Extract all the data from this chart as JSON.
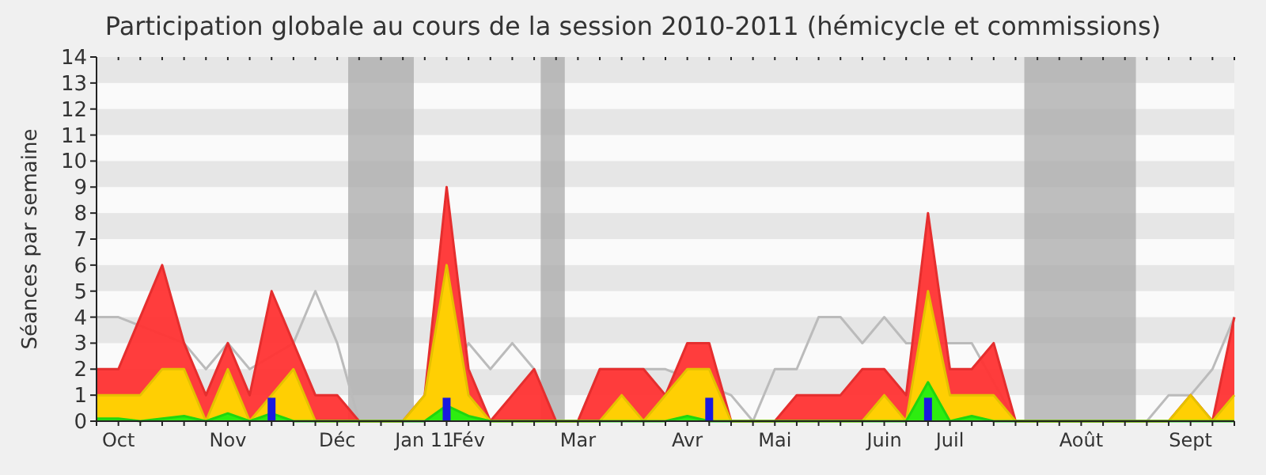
{
  "chart_data": {
    "type": "area",
    "title": "Participation globale au cours de la session 2010-2011 (hémicycle et commissions)",
    "ylabel": "Séances par semaine",
    "categories": [
      null,
      "Oct",
      null,
      null,
      null,
      null,
      "Nov",
      null,
      null,
      null,
      null,
      "Déc",
      null,
      null,
      null,
      "Jan 11",
      null,
      "Fév",
      null,
      null,
      null,
      null,
      "Mar",
      null,
      null,
      null,
      null,
      "Avr",
      null,
      null,
      null,
      "Mai",
      null,
      null,
      null,
      null,
      "Juin",
      null,
      null,
      "Juil",
      null,
      null,
      null,
      null,
      null,
      "Août",
      null,
      null,
      null,
      null,
      "Sept",
      null,
      null
    ],
    "ylim": [
      0,
      14
    ],
    "yticks": [
      0,
      1,
      2,
      3,
      4,
      5,
      6,
      7,
      8,
      9,
      10,
      11,
      12,
      13,
      14
    ],
    "series": [
      {
        "type": "line",
        "color": "#bbbbbb",
        "values": [
          4,
          4,
          null,
          null,
          3,
          2,
          3,
          2,
          null,
          3,
          5,
          3,
          0,
          0,
          0,
          0,
          null,
          3,
          2,
          3,
          2,
          0,
          0,
          2,
          null,
          null,
          2,
          null,
          null,
          1,
          0,
          2,
          2,
          4,
          4,
          3,
          4,
          3,
          null,
          3,
          3,
          null,
          0,
          0,
          0,
          0,
          0,
          0,
          0,
          1,
          1,
          2,
          4
        ]
      },
      {
        "color": "#ff3333",
        "values": [
          2,
          2,
          4,
          6,
          3,
          1,
          3,
          1,
          5,
          3,
          1,
          1,
          0,
          0,
          0,
          1,
          9,
          2,
          0,
          1,
          2,
          0,
          0,
          2,
          2,
          2,
          1,
          3,
          3,
          0,
          0,
          0,
          1,
          1,
          1,
          2,
          2,
          1,
          8,
          2,
          2,
          3,
          0,
          0,
          0,
          0,
          0,
          0,
          0,
          0,
          1,
          0,
          4
        ]
      },
      {
        "color": "#ffd700",
        "values": [
          1,
          1,
          1,
          2,
          2,
          0,
          2,
          0,
          1,
          2,
          0,
          0,
          0,
          0,
          0,
          1,
          6,
          1,
          0,
          0,
          0,
          0,
          0,
          0,
          1,
          0,
          1,
          2,
          2,
          0,
          0,
          0,
          0,
          0,
          0,
          0,
          1,
          0,
          5,
          1,
          1,
          1,
          0,
          0,
          0,
          0,
          0,
          0,
          0,
          0,
          1,
          0,
          1
        ]
      },
      {
        "color": "#22ee11",
        "values": [
          0.1,
          0.1,
          0,
          0.1,
          0.2,
          0,
          0.3,
          0,
          0.3,
          0,
          0,
          0,
          0,
          0,
          0,
          0,
          0.6,
          0.2,
          0,
          0,
          0,
          0,
          0,
          0,
          0,
          0,
          0,
          0.2,
          0,
          0,
          0,
          0,
          0,
          0,
          0,
          0,
          0,
          0,
          1.5,
          0,
          0.2,
          0,
          0,
          0,
          0,
          0,
          0,
          0,
          0,
          0,
          0,
          0,
          0
        ]
      },
      {
        "type": "bar",
        "color": "#1a1ae0",
        "values": [
          null,
          null,
          null,
          null,
          null,
          null,
          null,
          null,
          0.9,
          null,
          null,
          null,
          null,
          null,
          null,
          null,
          0.9,
          null,
          null,
          null,
          null,
          null,
          null,
          null,
          null,
          null,
          null,
          null,
          0.9,
          null,
          null,
          null,
          null,
          null,
          null,
          null,
          null,
          null,
          0.9,
          null,
          null,
          null,
          null,
          null,
          null,
          null,
          null,
          null,
          null,
          null,
          null,
          null,
          null
        ]
      }
    ]
  }
}
